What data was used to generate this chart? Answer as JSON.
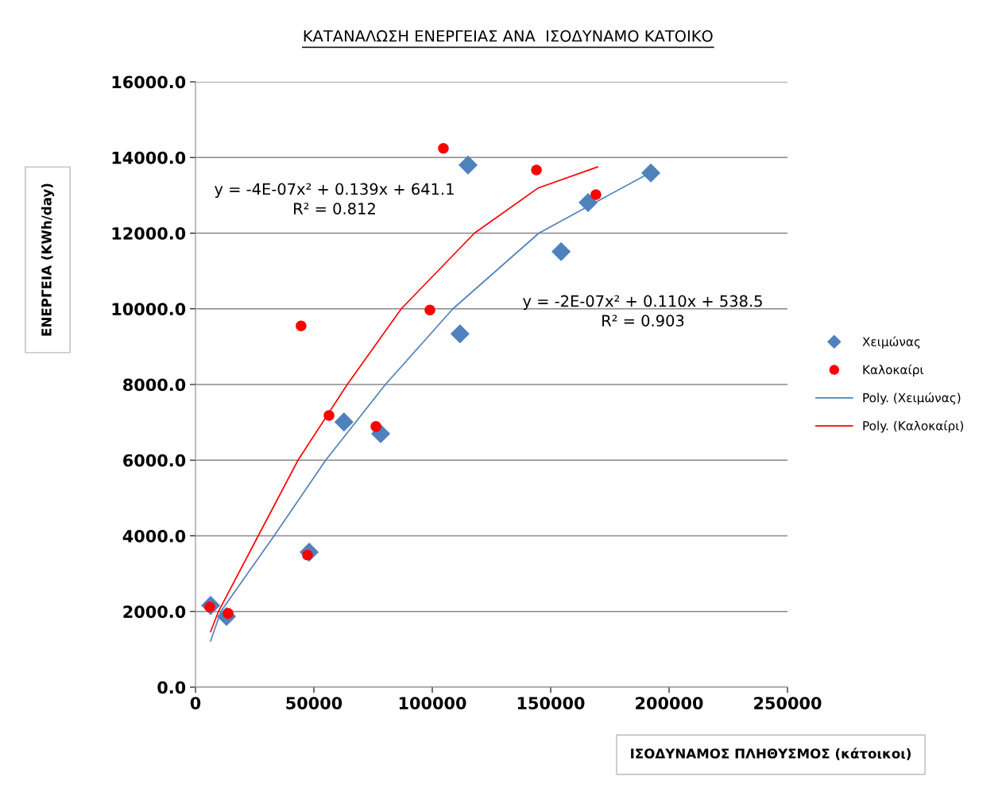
{
  "chart_data": {
    "type": "scatter",
    "title": "ΚΑΤΑΝΑΛΩΣΗ ΕΝΕΡΓΕΙΑΣ ΑΝΑ  ΙΣΟΔΥΝΑΜΟ ΚΑΤΟΙΚΟ",
    "xlabel": "ΙΣΟΔΥΝΑΜΟΣ ΠΛΗΘΥΣΜΟΣ (κάτοικοι)",
    "ylabel": "ΕΝΕΡΓΕΙΑ (KWh/day)",
    "xlim": [
      0,
      250000
    ],
    "xticks": [
      0,
      50000,
      100000,
      150000,
      200000,
      250000
    ],
    "ylim": [
      0,
      16000
    ],
    "yticks": [
      {
        "value": 0,
        "label": "0.0"
      },
      {
        "value": 2000,
        "label": "2000.0"
      },
      {
        "value": 4000,
        "label": "4000.0"
      },
      {
        "value": 6000,
        "label": "6000.0"
      },
      {
        "value": 8000,
        "label": "8000.0"
      },
      {
        "value": 10000,
        "label": "10000.0"
      },
      {
        "value": 12000,
        "label": "12000.0"
      },
      {
        "value": 14000,
        "label": "14000.0"
      },
      {
        "value": 16000,
        "label": "16000.0"
      }
    ],
    "grid": "y",
    "legend": "right",
    "series": [
      {
        "name": "Χειμώνας",
        "marker": "diamond",
        "color": "#4f81bd",
        "x": [
          6400,
          13100,
          48000,
          62700,
          78200,
          111700,
          115100,
          154400,
          165800,
          192300
        ],
        "values": [
          2160,
          1870,
          3570,
          7010,
          6700,
          9340,
          13800,
          11510,
          12810,
          13590
        ]
      },
      {
        "name": "Καλοκαίρι",
        "marker": "circle",
        "color": "#ff0000",
        "x": [
          6000,
          13800,
          47300,
          44600,
          56400,
          76200,
          99000,
          104700,
          144000,
          169100
        ],
        "values": [
          2120,
          1950,
          3490,
          9550,
          7180,
          6890,
          9970,
          14240,
          13670,
          13020
        ]
      },
      {
        "name": "Poly. (Χειμώνας)",
        "type": "line",
        "marker": "none",
        "color": "#4f81bd",
        "x": [
          6400,
          10700,
          33200,
          55000,
          80200,
          108700,
          145000,
          192000
        ],
        "values": [
          1220,
          2000,
          4000,
          6000,
          8000,
          10000,
          12000,
          13600
        ]
      },
      {
        "name": "Poly. (Καλοκαίρι)",
        "type": "line",
        "marker": "none",
        "color": "#ff0000",
        "x": [
          6400,
          9700,
          26500,
          43300,
          64100,
          86900,
          117800,
          144600,
          169800
        ],
        "values": [
          1470,
          2000,
          4000,
          6000,
          8000,
          10000,
          12000,
          13190,
          13750
        ]
      }
    ],
    "annotations": [
      "y = -4E-07x² + 0.139x + 641.1\nR² = 0.812",
      "y = -2E-07x² + 0.110x + 538.5\nR² = 0.903"
    ]
  }
}
